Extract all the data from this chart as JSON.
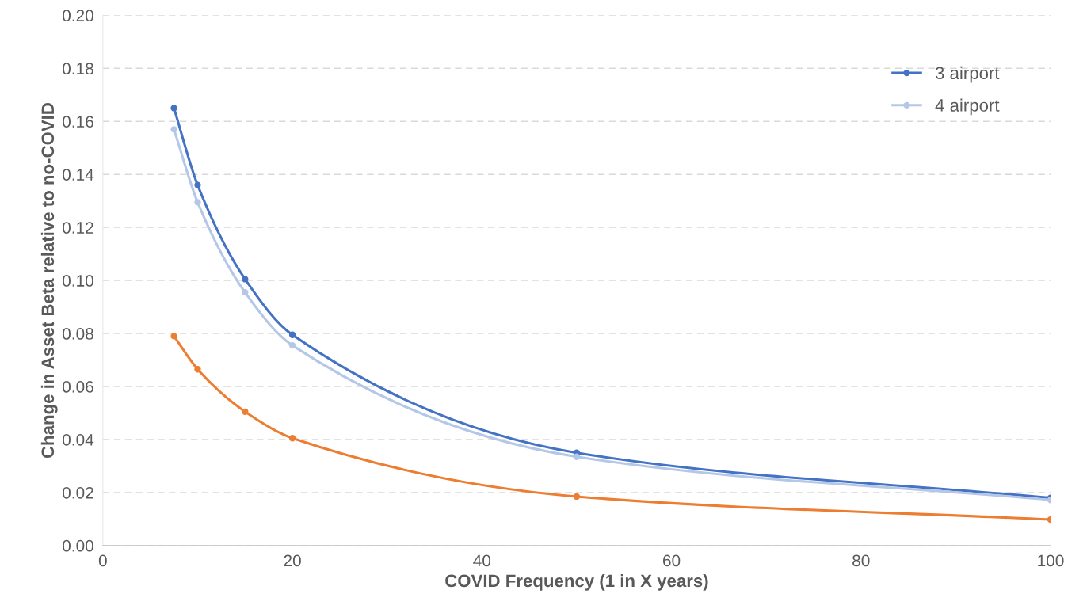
{
  "chart_data": {
    "type": "line",
    "xlabel": "COVID Frequency (1 in X years)",
    "ylabel": "Change in Asset Beta relative to no-COVID",
    "x": [
      7.5,
      10,
      15,
      20,
      50,
      100
    ],
    "series": [
      {
        "color": "#ed7d31",
        "values": [
          0.079,
          0.0665,
          0.0505,
          0.0405,
          0.0185,
          0.0098
        ]
      },
      {
        "name": "3 airport",
        "color": "#4472c4",
        "values": [
          0.165,
          0.136,
          0.1005,
          0.0795,
          0.035,
          0.018
        ]
      },
      {
        "name": "4 airport",
        "color": "#b4c7e7",
        "values": [
          0.157,
          0.1295,
          0.0955,
          0.0755,
          0.0335,
          0.0172
        ]
      }
    ],
    "xlim": [
      0,
      100
    ],
    "xticks": [
      0,
      20,
      40,
      60,
      80,
      100
    ],
    "ylim": [
      0,
      0.2
    ],
    "yticks": [
      {
        "value": 0,
        "label": "0.00"
      },
      {
        "value": 0.02,
        "label": "0.02"
      },
      {
        "value": 0.04,
        "label": "0.04"
      },
      {
        "value": 0.06,
        "label": "0.06"
      },
      {
        "value": 0.08,
        "label": "0.08"
      },
      {
        "value": 0.1,
        "label": "0.10"
      },
      {
        "value": 0.12,
        "label": "0.12"
      },
      {
        "value": 0.14,
        "label": "0.14"
      },
      {
        "value": 0.16,
        "label": "0.16"
      },
      {
        "value": 0.18,
        "label": "0.18"
      },
      {
        "value": 0.2,
        "label": "0.20"
      }
    ],
    "grid": "y",
    "legend": "top right",
    "marker": "circle",
    "line_style": "solid"
  }
}
